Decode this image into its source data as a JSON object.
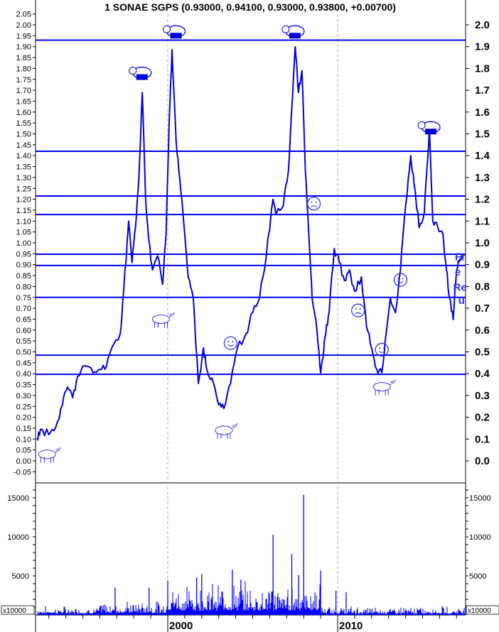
{
  "chart_data": {
    "type": "line",
    "title": "1 SONAE SGPS (0.93000, 0.94100, 0.93000, 0.93800, +0.00700)",
    "xlim": [
      1992.2,
      2017.5
    ],
    "x_tick_labels": [
      "2000",
      "2010"
    ],
    "price_ylim": [
      -0.08,
      2.1
    ],
    "left_ticks": [
      "2.05",
      "2.00",
      "1.95",
      "1.90",
      "1.85",
      "1.80",
      "1.75",
      "1.70",
      "1.65",
      "1.60",
      "1.55",
      "1.50",
      "1.45",
      "1.40",
      "1.35",
      "1.30",
      "1.25",
      "1.20",
      "1.15",
      "1.10",
      "1.05",
      "1.00",
      "0.95",
      "0.90",
      "0.85",
      "0.80",
      "0.75",
      "0.70",
      "0.65",
      "0.60",
      "0.55",
      "0.50",
      "0.45",
      "0.40",
      "0.35",
      "0.30",
      "0.25",
      "0.20",
      "0.15",
      "0.10",
      "0.05",
      "0.00",
      "-0.05"
    ],
    "right_ticks": [
      "2.0",
      "1.9",
      "1.8",
      "1.7",
      "1.6",
      "1.5",
      "1.4",
      "1.3",
      "1.2",
      "1.1",
      "1.0",
      "0.9",
      "0.8",
      "0.7",
      "0.6",
      "0.5",
      "0.4",
      "0.3",
      "0.2",
      "0.1",
      "0.0"
    ],
    "horizontal_levels": [
      1.93,
      1.42,
      1.215,
      1.13,
      0.948,
      0.896,
      0.75,
      0.485,
      0.397
    ],
    "price_series": [
      [
        1992.3,
        0.105
      ],
      [
        1992.5,
        0.145
      ],
      [
        1993.0,
        0.12
      ],
      [
        1993.4,
        0.153
      ],
      [
        1993.8,
        0.257
      ],
      [
        1994.1,
        0.339
      ],
      [
        1994.4,
        0.29
      ],
      [
        1994.7,
        0.388
      ],
      [
        1995.1,
        0.436
      ],
      [
        1995.6,
        0.404
      ],
      [
        1996.0,
        0.42
      ],
      [
        1996.4,
        0.436
      ],
      [
        1996.7,
        0.518
      ],
      [
        1997.2,
        0.583
      ],
      [
        1997.4,
        0.778
      ],
      [
        1997.7,
        1.1
      ],
      [
        1997.9,
        0.91
      ],
      [
        1998.1,
        1.07
      ],
      [
        1998.3,
        1.3
      ],
      [
        1998.5,
        1.69
      ],
      [
        1998.7,
        1.2
      ],
      [
        1998.9,
        1.006
      ],
      [
        1999.1,
        0.876
      ],
      [
        1999.4,
        0.94
      ],
      [
        1999.7,
        0.81
      ],
      [
        1999.9,
        1.04
      ],
      [
        2000.1,
        1.59
      ],
      [
        2000.25,
        1.886
      ],
      [
        2000.5,
        1.46
      ],
      [
        2000.7,
        1.3
      ],
      [
        2001.0,
        1.04
      ],
      [
        2001.2,
        0.844
      ],
      [
        2001.5,
        0.746
      ],
      [
        2001.8,
        0.355
      ],
      [
        2002.1,
        0.518
      ],
      [
        2002.3,
        0.42
      ],
      [
        2002.7,
        0.355
      ],
      [
        2003.0,
        0.257
      ],
      [
        2003.3,
        0.24
      ],
      [
        2003.7,
        0.355
      ],
      [
        2004.1,
        0.518
      ],
      [
        2004.6,
        0.583
      ],
      [
        2005.0,
        0.68
      ],
      [
        2005.4,
        0.746
      ],
      [
        2005.8,
        0.94
      ],
      [
        2006.2,
        1.2
      ],
      [
        2006.4,
        1.137
      ],
      [
        2006.8,
        1.17
      ],
      [
        2007.1,
        1.33
      ],
      [
        2007.3,
        1.62
      ],
      [
        2007.5,
        1.9
      ],
      [
        2007.7,
        1.69
      ],
      [
        2007.9,
        1.79
      ],
      [
        2008.1,
        1.33
      ],
      [
        2008.3,
        1.04
      ],
      [
        2008.5,
        0.746
      ],
      [
        2008.8,
        0.583
      ],
      [
        2009.0,
        0.404
      ],
      [
        2009.3,
        0.583
      ],
      [
        2009.5,
        0.68
      ],
      [
        2009.8,
        0.974
      ],
      [
        2010.1,
        0.909
      ],
      [
        2010.4,
        0.827
      ],
      [
        2010.7,
        0.876
      ],
      [
        2011.0,
        0.778
      ],
      [
        2011.4,
        0.844
      ],
      [
        2011.7,
        0.616
      ],
      [
        2012.0,
        0.518
      ],
      [
        2012.3,
        0.42
      ],
      [
        2012.6,
        0.404
      ],
      [
        2012.8,
        0.55
      ],
      [
        2013.1,
        0.746
      ],
      [
        2013.4,
        0.68
      ],
      [
        2013.7,
        0.876
      ],
      [
        2014.0,
        1.17
      ],
      [
        2014.3,
        1.4
      ],
      [
        2014.5,
        1.27
      ],
      [
        2014.8,
        1.07
      ],
      [
        2015.1,
        1.137
      ],
      [
        2015.4,
        1.52
      ],
      [
        2015.6,
        1.1
      ],
      [
        2015.9,
        1.07
      ],
      [
        2016.2,
        1.04
      ],
      [
        2016.4,
        0.876
      ],
      [
        2016.6,
        0.746
      ],
      [
        2016.8,
        0.648
      ],
      [
        2017.0,
        0.876
      ],
      [
        2017.2,
        0.925
      ],
      [
        2017.4,
        0.938
      ]
    ],
    "volume_ylim": [
      0,
      16500
    ],
    "volume_ticks": [
      "15000",
      "10000",
      "5000"
    ],
    "volume_unit": "x10000",
    "volume_baseline": [
      [
        1992.2,
        1996.0,
        500
      ],
      [
        1996.0,
        2000.0,
        800
      ],
      [
        2000.0,
        2009.0,
        1800
      ],
      [
        2009.0,
        2017.5,
        500
      ]
    ],
    "volume_spikes": [
      [
        1996.9,
        3500
      ],
      [
        1998.9,
        3500
      ],
      [
        2000.0,
        4400
      ],
      [
        2001.7,
        4800
      ],
      [
        2002.0,
        5200
      ],
      [
        2003.8,
        5800
      ],
      [
        2004.3,
        4500
      ],
      [
        2006.2,
        10300
      ],
      [
        2007.3,
        7800
      ],
      [
        2007.7,
        5100
      ],
      [
        2008.0,
        15400
      ],
      [
        2009.0,
        5700
      ],
      [
        2009.9,
        3100
      ],
      [
        2010.5,
        2900
      ]
    ],
    "markers": [
      {
        "type": "bear",
        "x": 2000.4,
        "y": 1.97
      },
      {
        "type": "bear",
        "x": 2007.4,
        "y": 1.97
      },
      {
        "type": "bear",
        "x": 1998.4,
        "y": 1.78
      },
      {
        "type": "bear",
        "x": 2015.4,
        "y": 1.53
      },
      {
        "type": "bull",
        "x": 1992.9,
        "y": 0.03
      },
      {
        "type": "bull",
        "x": 1999.6,
        "y": 0.65
      },
      {
        "type": "bull",
        "x": 2003.3,
        "y": 0.14
      },
      {
        "type": "bull",
        "x": 2012.6,
        "y": 0.34
      },
      {
        "type": "smile",
        "x": 2003.7,
        "y": 0.54
      },
      {
        "type": "smile",
        "x": 2013.7,
        "y": 0.83
      },
      {
        "type": "smile",
        "x": 2012.6,
        "y": 0.51
      },
      {
        "type": "frown",
        "x": 2008.6,
        "y": 1.18
      },
      {
        "type": "frown",
        "x": 2011.2,
        "y": 0.69
      }
    ],
    "annotations": [
      {
        "text": "Fr",
        "x": 2016.9,
        "y": 0.92
      },
      {
        "text": "e",
        "x": 2016.9,
        "y": 0.85
      },
      {
        "text": "Re",
        "x": 2016.8,
        "y": 0.78
      },
      {
        "text": "u",
        "x": 2017.1,
        "y": 0.72
      }
    ],
    "colors": {
      "series": "#0000ee",
      "levels": "#0000ee",
      "volume": "#0000ff",
      "grid": "#aaaaaa"
    }
  }
}
